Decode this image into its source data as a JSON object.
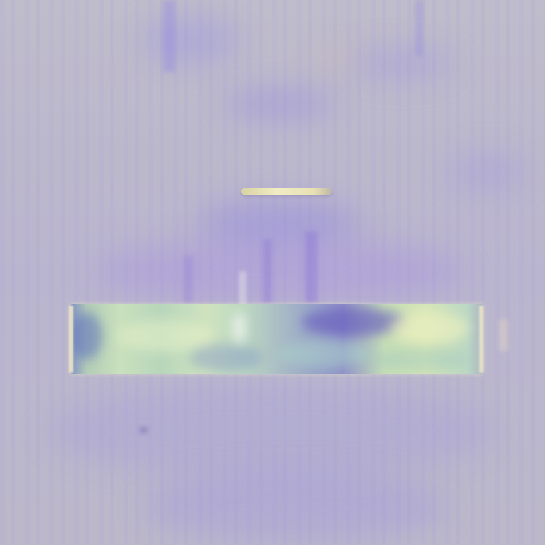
{
  "scene": {
    "description_colors": {
      "background": "#bdb9c9",
      "haze": "#9f97e0",
      "band_green": "#c9e0bd",
      "band_blue": "#8e8fc9",
      "band_yellow": "#d6e6b7",
      "bar": "#f2ecc4"
    }
  }
}
